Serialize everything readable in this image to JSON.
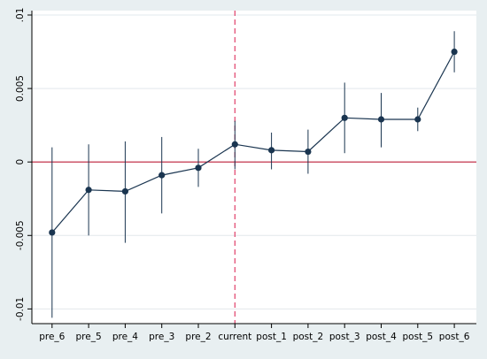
{
  "chart_data": {
    "type": "scatter",
    "title": "",
    "xlabel": "",
    "ylabel": "",
    "categories": [
      "pre_6",
      "pre_5",
      "pre_4",
      "pre_3",
      "pre_2",
      "current",
      "post_1",
      "post_2",
      "post_3",
      "post_4",
      "post_5",
      "post_6"
    ],
    "series": [
      {
        "estimate": [
          -0.0048,
          -0.0019,
          -0.002,
          -0.0009,
          -0.0004,
          0.0012,
          0.0008,
          0.0007,
          0.003,
          0.0029,
          0.0029,
          0.0075
        ],
        "ci_lower": [
          -0.0106,
          -0.005,
          -0.0055,
          -0.0035,
          -0.0017,
          -0.0005,
          -0.0005,
          -0.0008,
          0.0006,
          0.001,
          0.0021,
          0.0061
        ],
        "ci_upper": [
          0.001,
          0.0012,
          0.0014,
          0.0017,
          0.0009,
          0.0028,
          0.002,
          0.0022,
          0.0054,
          0.0047,
          0.0037,
          0.0089
        ]
      }
    ],
    "ylim": [
      -0.011,
      0.0103
    ],
    "yticks": [
      -0.01,
      -0.005,
      0,
      0.005,
      0.01
    ],
    "ytick_labels": [
      "-0.01",
      "-0.005",
      "0",
      "0.005",
      ".01"
    ],
    "reference_line_y": 0,
    "reference_line_x_category": "current",
    "grid": "horizontal",
    "legend": "none",
    "colors": {
      "figure_background": "#e8eff1",
      "plot_background": "#ffffff",
      "series": "#1a3550",
      "zero_line": "#c0203a",
      "event_line": "#e0406a",
      "grid": "#e2e8ec",
      "axis": "#000000"
    }
  }
}
